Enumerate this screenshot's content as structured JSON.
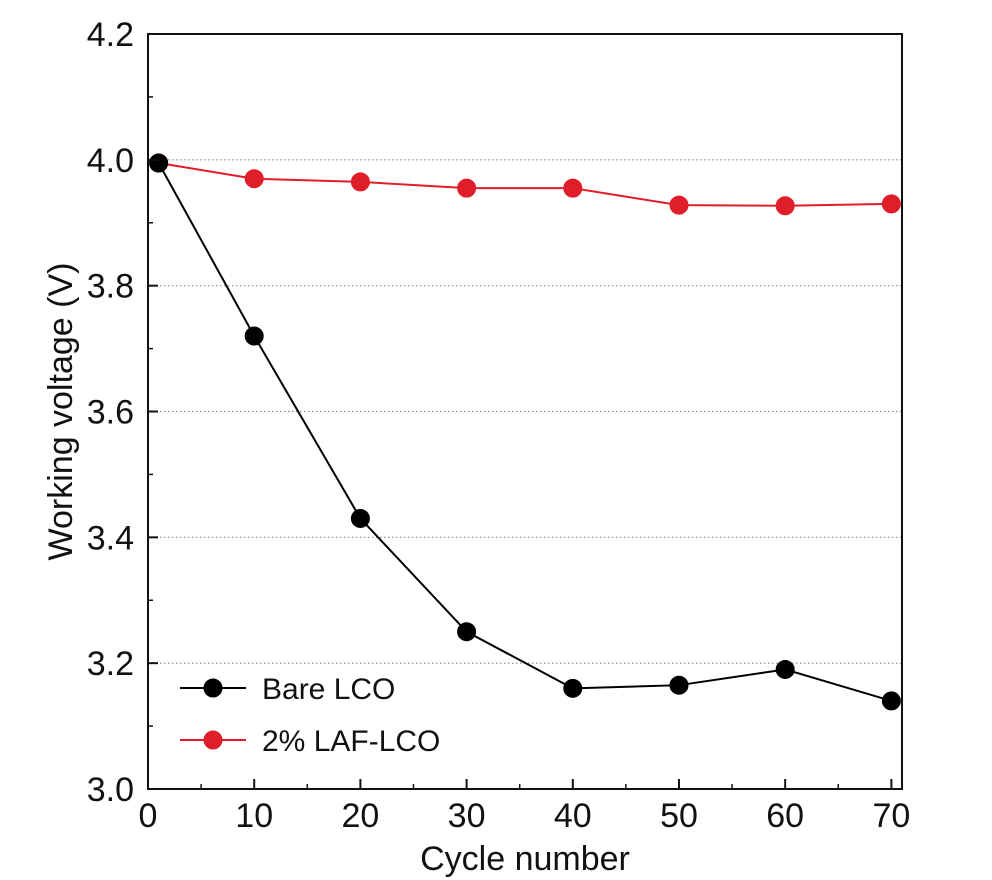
{
  "chart_data": {
    "type": "line",
    "title": "",
    "xlabel": "Cycle number",
    "ylabel": "Working voltage (V)",
    "xlim": [
      0,
      71
    ],
    "ylim": [
      3.0,
      4.2
    ],
    "xticks": [
      0,
      10,
      20,
      30,
      40,
      50,
      60,
      70
    ],
    "xtick_labels": [
      "0",
      "10",
      "20",
      "30",
      "40",
      "50",
      "60",
      "70"
    ],
    "yticks": [
      3.0,
      3.2,
      3.4,
      3.6,
      3.8,
      4.0,
      4.2
    ],
    "ytick_labels": [
      "3.0",
      "3.2",
      "3.4",
      "3.6",
      "3.8",
      "4.0",
      "4.2"
    ],
    "grid": "horizontal dotted",
    "legend_position": "bottom-left",
    "x": [
      1,
      10,
      20,
      30,
      40,
      50,
      60,
      70
    ],
    "series": [
      {
        "name": "Bare LCO",
        "color": "#000000",
        "values": [
          3.995,
          3.72,
          3.43,
          3.25,
          3.16,
          3.165,
          3.19,
          3.14
        ]
      },
      {
        "name": "2% LAF-LCO",
        "color": "#e01e2a",
        "values": [
          3.995,
          3.97,
          3.965,
          3.955,
          3.955,
          3.928,
          3.927,
          3.93
        ]
      }
    ]
  }
}
